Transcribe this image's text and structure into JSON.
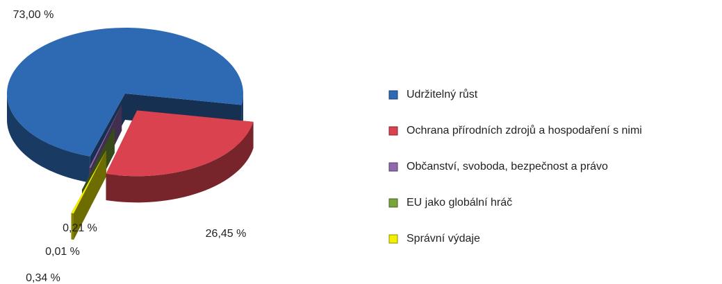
{
  "chart_data": {
    "type": "pie",
    "categories": [
      "Udržitelný růst",
      "Ochrana přírodních zdrojů a hospodaření s nimi",
      "Občanství, svoboda, bezpečnost a právo",
      "EU jako globální hráč",
      "Správní výdaje"
    ],
    "values": [
      73.0,
      26.45,
      0.21,
      0.01,
      0.34
    ],
    "value_labels": [
      "73,00 %",
      "26,45 %",
      "0,21 %",
      "0,01 %",
      "0,34 %"
    ],
    "colors": [
      "#2e6ab4",
      "#d9424e",
      "#8f68ad",
      "#78a43c",
      "#f2ef00"
    ],
    "legend": "right"
  }
}
